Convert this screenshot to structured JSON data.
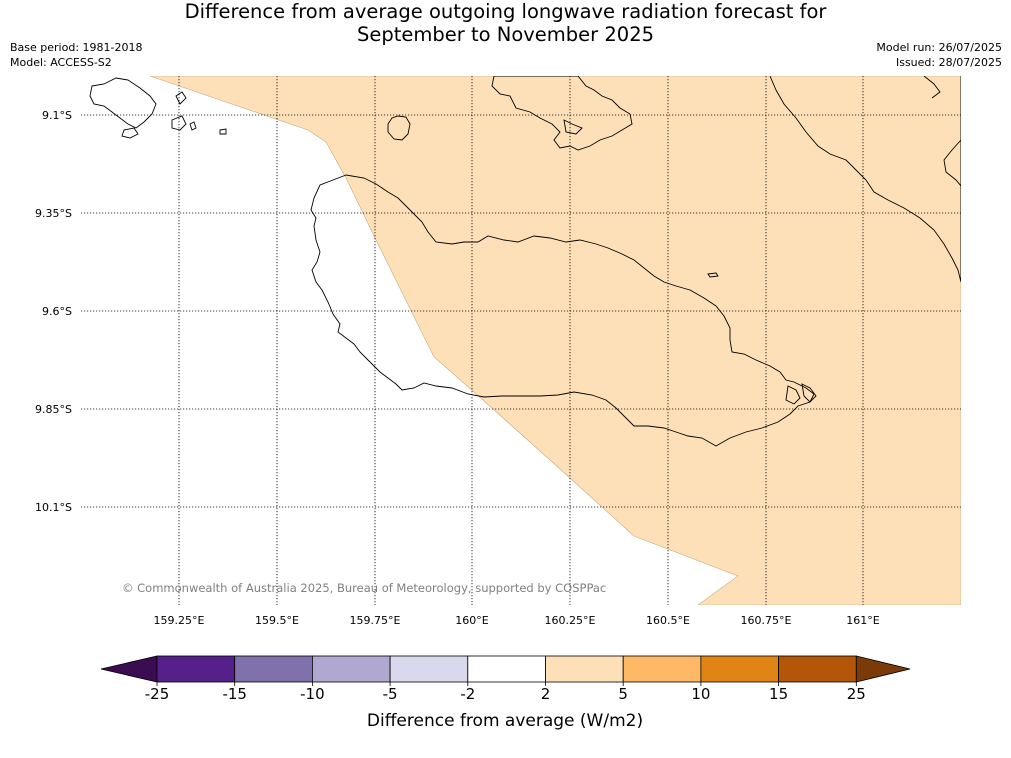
{
  "title": {
    "line1": "Difference from average outgoing longwave radiation forecast for",
    "line2": "September to November 2025"
  },
  "meta_left": {
    "base_period": "Base period: 1981-2018",
    "model": "Model: ACCESS-S2"
  },
  "meta_right": {
    "model_run": "Model run: 26/07/2025",
    "issued": "Issued: 28/07/2025"
  },
  "map": {
    "lon_ticks": [
      "159.25°E",
      "159.5°E",
      "159.75°E",
      "160°E",
      "160.25°E",
      "160.5°E",
      "160.75°E",
      "161°E"
    ],
    "lat_ticks": [
      "9.1°S",
      "9.35°S",
      "9.6°S",
      "9.85°S",
      "10.1°S"
    ],
    "copyright": "© Commonwealth of Australia 2025, Bureau of Meteorology, supported by COSPPac",
    "anomaly_fill_color": "#fde0b8",
    "coastline_color": "#000000"
  },
  "colorbar": {
    "label": "Difference from average (W/m2)",
    "ticks": [
      "-25",
      "-15",
      "-10",
      "-5",
      "-2",
      "2",
      "5",
      "10",
      "15",
      "25"
    ],
    "colors": [
      "#3b0c52",
      "#56208a",
      "#8071ad",
      "#b1a8d2",
      "#d8d9ec",
      "#ffffff",
      "#fde0b8",
      "#fdb965",
      "#e08415",
      "#b45607",
      "#7b3a08"
    ]
  }
}
